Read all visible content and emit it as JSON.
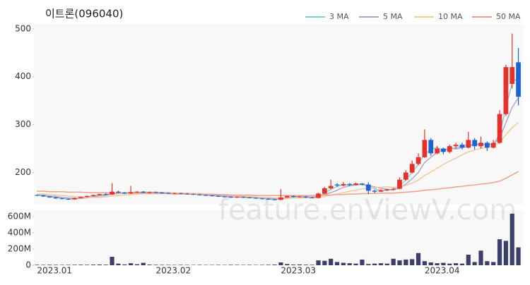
{
  "chart_data": {
    "type": "candlestick",
    "title": "이트론(096040)",
    "watermark": "feature.enViewV.com",
    "up_color": "#e8302a",
    "down_color": "#1b64d8",
    "categories": [
      "2023.01",
      null,
      null,
      null,
      null,
      null,
      null,
      null,
      null,
      null,
      null,
      null,
      null,
      null,
      null,
      null,
      null,
      null,
      null,
      "2023.02",
      null,
      null,
      null,
      null,
      null,
      null,
      null,
      null,
      null,
      null,
      null,
      null,
      null,
      null,
      null,
      null,
      null,
      null,
      null,
      "2023.03",
      null,
      null,
      null,
      null,
      null,
      null,
      null,
      null,
      null,
      null,
      null,
      null,
      null,
      null,
      null,
      null,
      null,
      null,
      null,
      null,
      null,
      null,
      "2023.04",
      null,
      null,
      null,
      null,
      null,
      null,
      null,
      null,
      null,
      null,
      null,
      null,
      null,
      null,
      null
    ],
    "open": [
      153,
      152,
      150,
      148,
      146,
      145,
      144,
      147,
      149,
      151,
      153,
      155,
      154,
      160,
      158,
      156,
      159,
      160,
      158,
      159,
      158,
      157,
      156,
      157,
      156,
      155,
      154,
      153,
      152,
      151,
      150,
      149,
      148,
      149,
      148,
      147,
      146,
      145,
      144,
      143,
      148,
      151,
      149,
      150,
      148,
      147,
      156,
      167,
      175,
      173,
      176,
      174,
      177,
      175,
      162,
      160,
      163,
      165,
      166,
      185,
      200,
      218,
      232,
      268,
      240,
      250,
      243,
      255,
      258,
      252,
      268,
      255,
      262,
      252,
      262,
      322,
      385,
      430
    ],
    "high": [
      154,
      153,
      151,
      149,
      147,
      146,
      148,
      150,
      152,
      154,
      156,
      157,
      178,
      162,
      159,
      172,
      161,
      161,
      160,
      160,
      159,
      158,
      158,
      158,
      157,
      156,
      155,
      154,
      153,
      152,
      151,
      150,
      150,
      150,
      149,
      148,
      147,
      146,
      145,
      165,
      152,
      152,
      151,
      151,
      149,
      158,
      170,
      185,
      178,
      180,
      178,
      179,
      178,
      180,
      164,
      165,
      166,
      168,
      190,
      205,
      225,
      240,
      290,
      272,
      255,
      252,
      258,
      262,
      262,
      285,
      272,
      275,
      265,
      268,
      330,
      425,
      490,
      460
    ],
    "low": [
      151,
      149,
      147,
      145,
      144,
      143,
      143,
      146,
      148,
      150,
      152,
      153,
      153,
      157,
      155,
      155,
      157,
      157,
      156,
      157,
      156,
      155,
      155,
      155,
      154,
      153,
      152,
      151,
      150,
      149,
      148,
      147,
      147,
      147,
      146,
      145,
      144,
      143,
      142,
      142,
      147,
      148,
      148,
      147,
      146,
      146,
      155,
      165,
      170,
      171,
      172,
      173,
      173,
      155,
      157,
      159,
      161,
      163,
      165,
      183,
      198,
      215,
      230,
      235,
      238,
      238,
      240,
      250,
      248,
      250,
      248,
      250,
      245,
      250,
      260,
      318,
      375,
      340
    ],
    "close": [
      152,
      150,
      148,
      146,
      145,
      144,
      147,
      149,
      151,
      153,
      155,
      154,
      160,
      158,
      156,
      159,
      160,
      158,
      159,
      158,
      157,
      156,
      157,
      156,
      155,
      154,
      153,
      152,
      151,
      150,
      149,
      148,
      149,
      148,
      147,
      146,
      145,
      144,
      143,
      148,
      151,
      149,
      150,
      148,
      147,
      156,
      167,
      172,
      173,
      176,
      174,
      177,
      175,
      162,
      160,
      163,
      165,
      166,
      185,
      200,
      218,
      232,
      268,
      240,
      250,
      243,
      255,
      258,
      252,
      268,
      255,
      262,
      252,
      262,
      322,
      420,
      420,
      358
    ],
    "ylim": [
      136,
      510
    ],
    "yticks": [
      200,
      300,
      400,
      500
    ],
    "series": [
      {
        "name": "3 MA",
        "color": "#7fd3d0",
        "values": [
          153,
          151,
          150,
          148,
          146,
          145,
          145,
          147,
          149,
          151,
          153,
          154,
          156,
          157,
          158,
          158,
          158,
          159,
          159,
          158,
          158,
          157,
          157,
          156,
          156,
          155,
          154,
          153,
          152,
          151,
          150,
          149,
          149,
          148,
          148,
          147,
          146,
          145,
          144,
          145,
          147,
          149,
          150,
          149,
          148,
          150,
          157,
          165,
          171,
          174,
          174,
          176,
          175,
          171,
          166,
          162,
          163,
          165,
          172,
          184,
          201,
          217,
          239,
          247,
          253,
          244,
          249,
          252,
          255,
          259,
          258,
          262,
          256,
          259,
          279,
          335,
          387,
          399
        ]
      },
      {
        "name": "5 MA",
        "color": "#b8a3c8",
        "values": [
          154,
          153,
          151,
          150,
          148,
          147,
          146,
          146,
          147,
          149,
          151,
          152,
          155,
          156,
          157,
          157,
          158,
          158,
          158,
          159,
          158,
          158,
          157,
          157,
          156,
          156,
          155,
          154,
          153,
          152,
          151,
          150,
          149,
          149,
          148,
          148,
          147,
          146,
          145,
          145,
          146,
          147,
          148,
          149,
          149,
          150,
          154,
          158,
          163,
          169,
          172,
          174,
          175,
          173,
          170,
          167,
          165,
          163,
          168,
          176,
          187,
          200,
          221,
          232,
          242,
          247,
          251,
          249,
          252,
          255,
          258,
          259,
          258,
          260,
          271,
          304,
          336,
          356
        ]
      },
      {
        "name": "10 MA",
        "color": "#f5c89a",
        "values": [
          155,
          155,
          154,
          153,
          152,
          151,
          150,
          149,
          148,
          148,
          148,
          149,
          151,
          152,
          153,
          154,
          155,
          156,
          157,
          157,
          157,
          157,
          157,
          157,
          157,
          156,
          156,
          155,
          155,
          154,
          153,
          152,
          151,
          151,
          150,
          149,
          148,
          148,
          147,
          147,
          147,
          147,
          147,
          147,
          147,
          148,
          150,
          153,
          155,
          158,
          161,
          163,
          166,
          167,
          168,
          169,
          170,
          169,
          170,
          173,
          178,
          184,
          194,
          201,
          209,
          217,
          224,
          230,
          237,
          243,
          247,
          251,
          252,
          256,
          262,
          279,
          294,
          304
        ]
      },
      {
        "name": "50 MA",
        "color": "#f2a08a",
        "values": [
          161,
          161,
          160,
          160,
          160,
          159,
          159,
          159,
          158,
          158,
          158,
          158,
          157,
          157,
          157,
          157,
          157,
          156,
          156,
          156,
          156,
          156,
          155,
          155,
          155,
          155,
          155,
          154,
          154,
          154,
          154,
          153,
          153,
          153,
          153,
          152,
          152,
          152,
          152,
          152,
          152,
          152,
          152,
          152,
          152,
          152,
          153,
          153,
          154,
          154,
          155,
          155,
          156,
          156,
          156,
          157,
          157,
          157,
          158,
          159,
          160,
          161,
          163,
          164,
          165,
          167,
          168,
          170,
          171,
          173,
          174,
          176,
          177,
          179,
          182,
          188,
          195,
          202
        ]
      }
    ],
    "volume": {
      "color": "#3d3f6b",
      "values": [
        6000000.0,
        5000000.0,
        6000000.0,
        5000000.0,
        4000000.0,
        5000000.0,
        6000000.0,
        7000000.0,
        6000000.0,
        8000000.0,
        9000000.0,
        7000000.0,
        104000000.0,
        20000000.0,
        10000000.0,
        25000000.0,
        12000000.0,
        30000000.0,
        8000000.0,
        6000000.0,
        5000000.0,
        5000000.0,
        4000000.0,
        5000000.0,
        4000000.0,
        4000000.0,
        5000000.0,
        4000000.0,
        4000000.0,
        5000000.0,
        4000000.0,
        6000000.0,
        5000000.0,
        4000000.0,
        5000000.0,
        4000000.0,
        5000000.0,
        6000000.0,
        8000000.0,
        35000000.0,
        15000000.0,
        8000000.0,
        10000000.0,
        7000000.0,
        6000000.0,
        60000000.0,
        55000000.0,
        80000000.0,
        40000000.0,
        30000000.0,
        25000000.0,
        20000000.0,
        70000000.0,
        15000000.0,
        20000000.0,
        25000000.0,
        20000000.0,
        80000000.0,
        60000000.0,
        70000000.0,
        75000000.0,
        150000000.0,
        50000000.0,
        35000000.0,
        25000000.0,
        30000000.0,
        20000000.0,
        25000000.0,
        20000000.0,
        130000000.0,
        40000000.0,
        180000000.0,
        50000000.0,
        40000000.0,
        320000000.0,
        300000000.0,
        635000000.0,
        220000000.0
      ],
      "ylim": [
        0,
        660000000
      ],
      "yticks": [
        0,
        {
          "value": 200000000,
          "label": "200M"
        },
        {
          "value": 400000000,
          "label": "400M"
        },
        {
          "value": 600000000,
          "label": "600M"
        }
      ]
    }
  }
}
